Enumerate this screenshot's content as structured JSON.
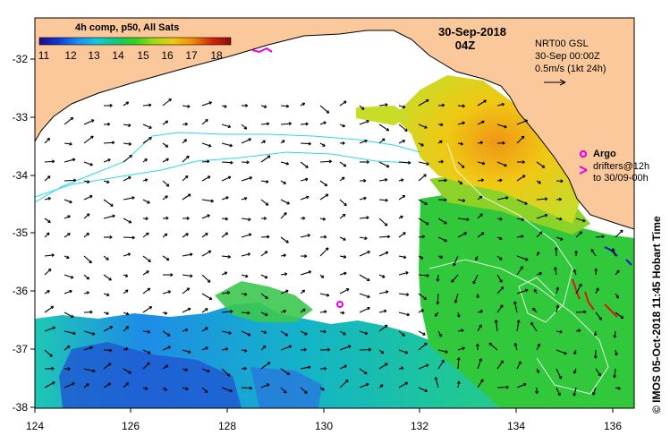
{
  "map": {
    "product": "4h comp, p50, All Sats",
    "date": "30-Sep-2018",
    "time": "04Z",
    "model": "NRT00 GSL",
    "model_time": "30-Sep 00:00Z",
    "vector_scale": "0.5m/s (1kt 24h)",
    "argo_label": "Argo",
    "drifter_line1": "drifters@12h",
    "drifter_line2": "to 30/09-00h",
    "credit": "© IMOS 05-Oct-2018 11:45 Hobart Time"
  },
  "colorbar": {
    "ticks": [
      "11",
      "12",
      "13",
      "14",
      "15",
      "16",
      "17",
      "18"
    ],
    "colors": [
      "#1e0a8c",
      "#0a3cd2",
      "#1e8cf0",
      "#14c8dc",
      "#14c878",
      "#32d21e",
      "#a0dc14",
      "#f0c814",
      "#f08c0a",
      "#d2280a",
      "#8c0a0a"
    ]
  },
  "axes": {
    "x_ticks": [
      "124",
      "126",
      "128",
      "130",
      "132",
      "134",
      "136"
    ],
    "y_ticks": [
      "-32",
      "-33",
      "-34",
      "-35",
      "-36",
      "-37",
      "-38"
    ]
  },
  "colors": {
    "land": "#fbc89b",
    "no_data": "#ffffff",
    "contour": "#2ad8ea",
    "argo": "#e600e6",
    "arrow": "#000000"
  }
}
